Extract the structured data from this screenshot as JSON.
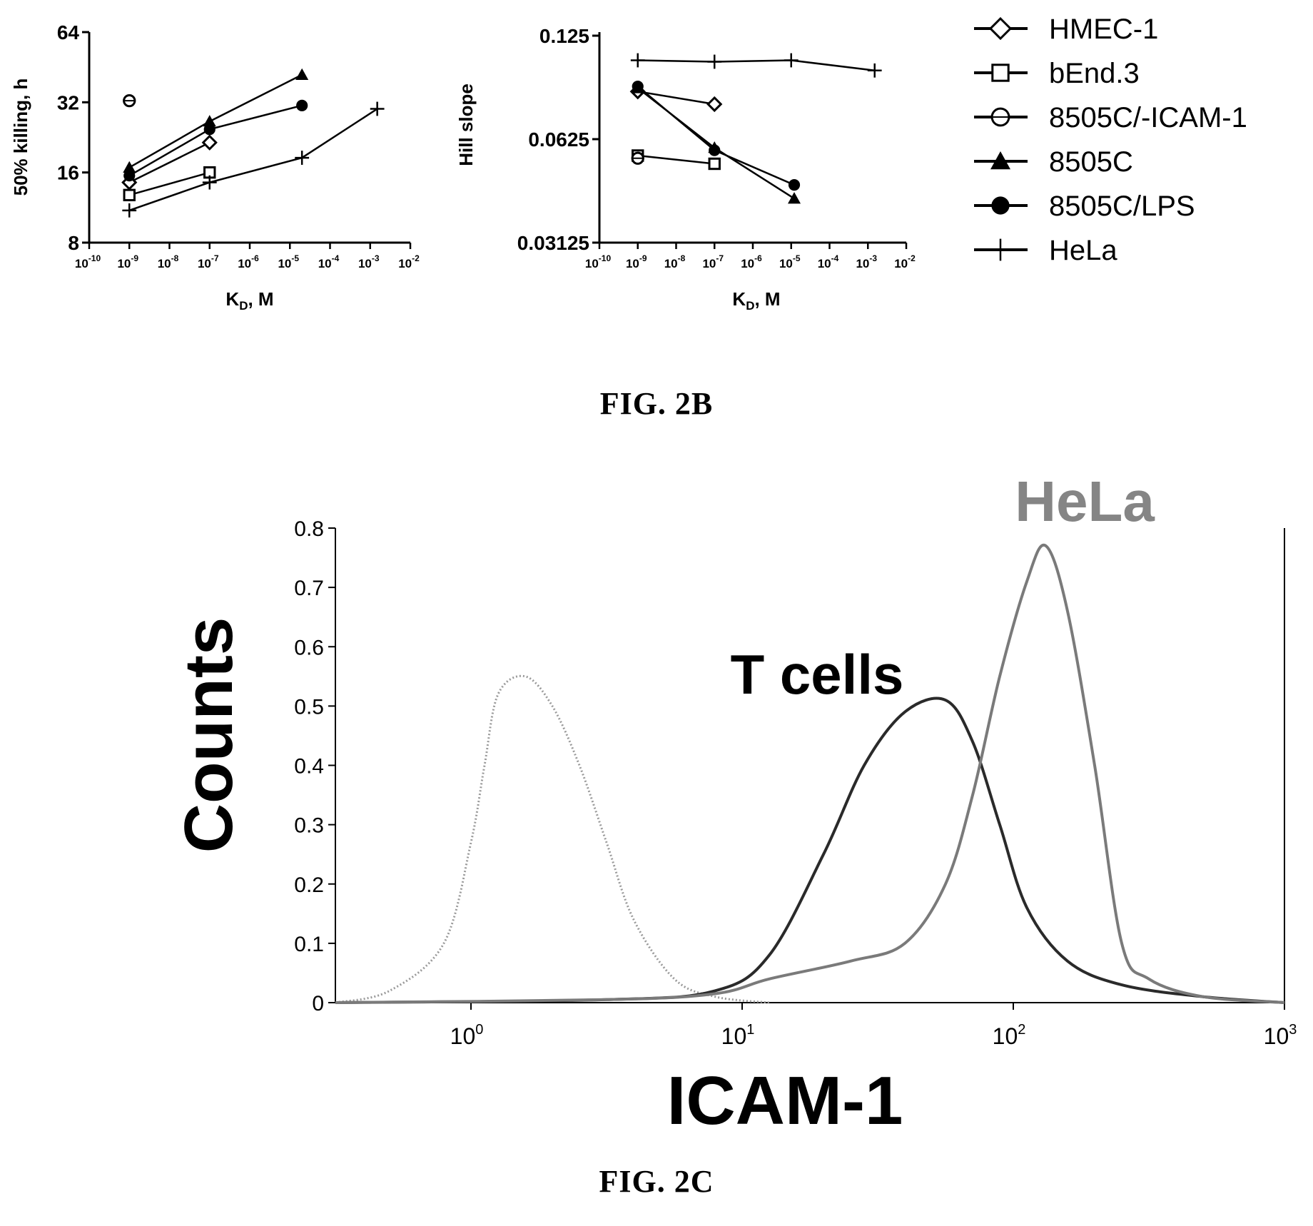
{
  "figures": {
    "caption_2b": "FIG. 2B",
    "caption_2c": "FIG. 2C"
  },
  "chart_data": [
    {
      "type": "line",
      "panel": "2B-left",
      "xlabel": "K_D, M",
      "ylabel": "50% killing, h",
      "x_scale": "log10",
      "y_scale": "log2",
      "xlim": [
        -10,
        -2
      ],
      "x_ticks": [
        -10,
        -9,
        -8,
        -7,
        -6,
        -5,
        -4,
        -3,
        -2
      ],
      "ylim": [
        8,
        64
      ],
      "y_ticks": [
        8,
        16,
        32,
        64
      ],
      "y_tick_labels": [
        "8",
        "16",
        "32",
        "64"
      ],
      "series": [
        {
          "name": "HMEC-1",
          "marker": "diamond",
          "x": [
            1e-09,
            1e-07
          ],
          "y": [
            14.5,
            21.5
          ]
        },
        {
          "name": "bEnd.3",
          "marker": "square",
          "x": [
            1e-09,
            1e-07
          ],
          "y": [
            12.8,
            16
          ]
        },
        {
          "name": "8505C/-ICAM-1",
          "marker": "circle-open",
          "x": [
            1e-09
          ],
          "y": [
            32.5
          ]
        },
        {
          "name": "8505C",
          "marker": "triangle",
          "x": [
            1e-09,
            1e-07,
            2e-05
          ],
          "y": [
            16.8,
            26.5,
            42
          ]
        },
        {
          "name": "8505C/LPS",
          "marker": "circle",
          "x": [
            1e-09,
            1e-07,
            2e-05
          ],
          "y": [
            15.5,
            24.5,
            31
          ]
        },
        {
          "name": "HeLa",
          "marker": "plus",
          "x": [
            1e-09,
            1e-07,
            2e-05,
            0.0015
          ],
          "y": [
            11,
            14.5,
            18.5,
            30
          ]
        }
      ]
    },
    {
      "type": "line",
      "panel": "2B-right",
      "xlabel": "K_D, M",
      "ylabel": "Hill slope",
      "x_scale": "log10",
      "y_scale": "log2",
      "xlim": [
        -10,
        -2
      ],
      "x_ticks": [
        -10,
        -9,
        -8,
        -7,
        -6,
        -5,
        -4,
        -3,
        -2
      ],
      "ylim": [
        0.03125,
        0.125
      ],
      "y_ticks": [
        0.03125,
        0.0625,
        0.125
      ],
      "y_tick_labels": [
        "0.03125",
        "0.0625",
        "0.125"
      ],
      "series": [
        {
          "name": "HMEC-1",
          "marker": "diamond",
          "x": [
            1e-09,
            1e-07
          ],
          "y": [
            0.086,
            0.079
          ]
        },
        {
          "name": "bEnd.3",
          "marker": "square",
          "x": [
            1e-09,
            1e-07
          ],
          "y": [
            0.056,
            0.053
          ]
        },
        {
          "name": "8505C/-ICAM-1",
          "marker": "circle-open",
          "x": [
            1e-09
          ],
          "y": [
            0.055
          ]
        },
        {
          "name": "8505C",
          "marker": "triangle",
          "x": [
            1e-09,
            1e-07,
            1.2e-05
          ],
          "y": [
            0.088,
            0.059,
            0.042
          ]
        },
        {
          "name": "8505C/LPS",
          "marker": "circle",
          "x": [
            1e-09,
            1e-07,
            1.2e-05
          ],
          "y": [
            0.089,
            0.058,
            0.046
          ]
        },
        {
          "name": "HeLa",
          "marker": "plus",
          "x": [
            1e-09,
            1e-07,
            1e-05,
            0.0015
          ],
          "y": [
            0.106,
            0.105,
            0.106,
            0.099
          ]
        }
      ]
    },
    {
      "type": "area",
      "panel": "2C",
      "xlabel": "ICAM-1",
      "ylabel": "Counts",
      "x_scale": "log10",
      "xlim": [
        -0.5,
        3
      ],
      "x_ticks": [
        0,
        1,
        2,
        3
      ],
      "x_tick_labels": [
        "10",
        "10",
        "10",
        "10"
      ],
      "x_tick_exponents": [
        "0",
        "1",
        "2",
        "3"
      ],
      "ylim": [
        0,
        0.8
      ],
      "y_ticks": [
        0,
        0.1,
        0.2,
        0.3,
        0.4,
        0.5,
        0.6,
        0.7,
        0.8
      ],
      "y_tick_labels": [
        "0",
        "0.1",
        "0.2",
        "0.3",
        "0.4",
        "0.5",
        "0.6",
        "0.7",
        "0.8"
      ],
      "annotations": [
        "T cells",
        "HeLa"
      ],
      "series": [
        {
          "name": "",
          "style": "dotted-light",
          "x": [
            -0.5,
            -0.3,
            -0.1,
            0.0,
            0.05,
            0.1,
            0.2,
            0.3,
            0.4,
            0.5,
            0.6,
            0.75,
            0.9,
            1.1
          ],
          "y": [
            0.0,
            0.02,
            0.1,
            0.27,
            0.4,
            0.52,
            0.55,
            0.5,
            0.4,
            0.27,
            0.14,
            0.04,
            0.01,
            0.0
          ]
        },
        {
          "name": "T cells",
          "style": "dark",
          "x": [
            -0.5,
            0.5,
            0.9,
            1.1,
            1.3,
            1.45,
            1.6,
            1.75,
            1.85,
            1.95,
            2.05,
            2.2,
            2.4,
            2.7,
            3.0
          ],
          "y": [
            0.0,
            0.005,
            0.02,
            0.08,
            0.25,
            0.4,
            0.49,
            0.51,
            0.44,
            0.3,
            0.16,
            0.07,
            0.03,
            0.01,
            0.0
          ]
        },
        {
          "name": "HeLa",
          "style": "grey",
          "x": [
            -0.5,
            0.5,
            0.9,
            1.1,
            1.4,
            1.6,
            1.75,
            1.85,
            1.95,
            2.05,
            2.12,
            2.2,
            2.3,
            2.4,
            2.5,
            2.7,
            3.0
          ],
          "y": [
            0.0,
            0.005,
            0.015,
            0.04,
            0.07,
            0.1,
            0.2,
            0.35,
            0.55,
            0.71,
            0.77,
            0.66,
            0.4,
            0.1,
            0.04,
            0.01,
            0.0
          ]
        }
      ]
    }
  ],
  "legend": {
    "items": [
      {
        "label": "HMEC-1",
        "marker": "diamond"
      },
      {
        "label": "bEnd.3",
        "marker": "square"
      },
      {
        "label": "8505C/-ICAM-1",
        "marker": "circle-open"
      },
      {
        "label": "8505C",
        "marker": "triangle"
      },
      {
        "label": "8505C/LPS",
        "marker": "circle"
      },
      {
        "label": "HeLa",
        "marker": "plus"
      }
    ]
  },
  "colors": {
    "ink": "#000000",
    "isotype": "#9a9a9a",
    "tcells": "#2a2a2a",
    "hela": "#7a7a7a",
    "hela_label": "#858585"
  }
}
